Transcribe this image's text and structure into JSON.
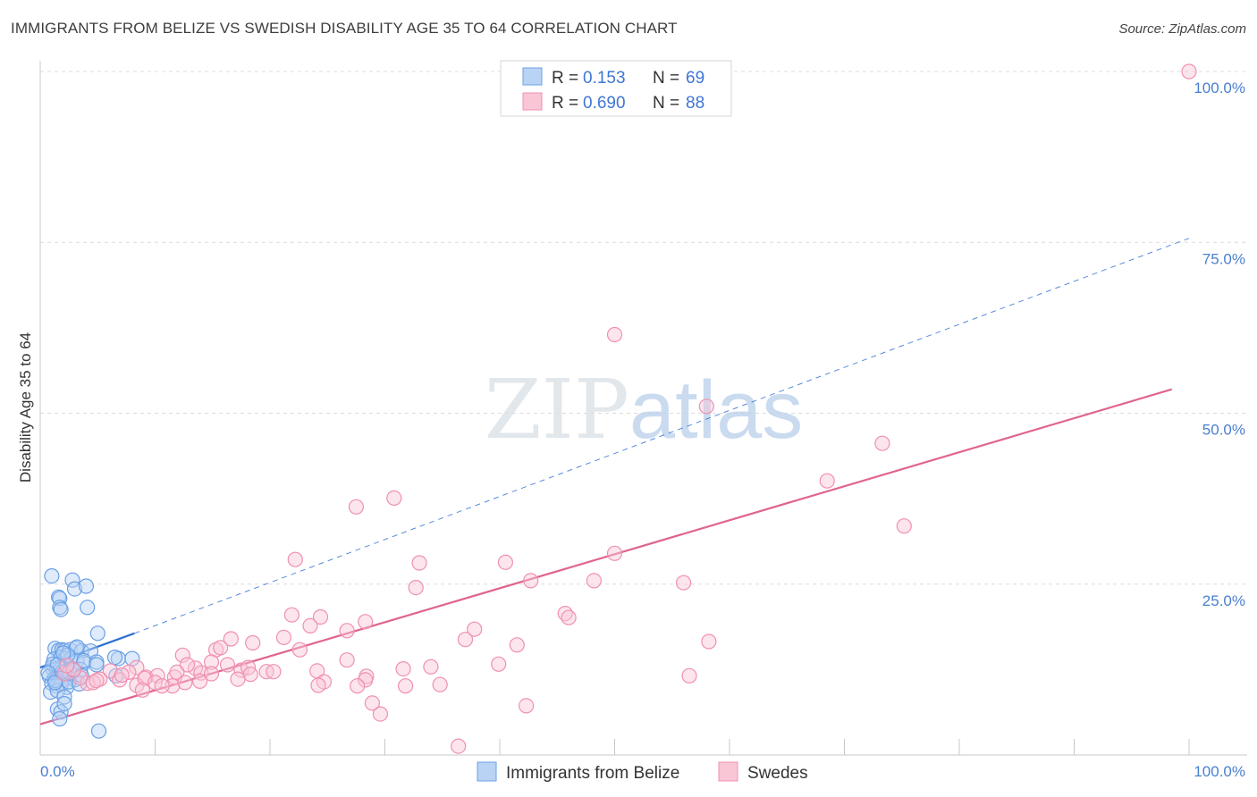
{
  "chart_data": {
    "type": "scatter",
    "title": "IMMIGRANTS FROM BELIZE VS SWEDISH DISABILITY AGE 35 TO 64 CORRELATION CHART",
    "source": "Source: ZipAtlas.com",
    "ylabel": "Disability Age 35 to 64",
    "xlim": [
      0,
      100
    ],
    "ylim": [
      0,
      100
    ],
    "x_tick_labels": {
      "left": "0.0%",
      "right": "100.0%"
    },
    "y_ticks": [
      {
        "value": 25,
        "label": "25.0%"
      },
      {
        "value": 50,
        "label": "50.0%"
      },
      {
        "value": 75,
        "label": "75.0%"
      },
      {
        "value": 100,
        "label": "100.0%"
      }
    ],
    "grid": true,
    "legend": {
      "position": "top-center",
      "entries": [
        {
          "r_label": "R =",
          "r": "0.153",
          "n_label": "N =",
          "n": "69"
        },
        {
          "r_label": "R =",
          "r": "0.690",
          "n_label": "N =",
          "n": "88"
        }
      ]
    },
    "watermark": "ZIPatlas",
    "series": [
      {
        "name": "Immigrants from Belize",
        "color": "#6aa0e6",
        "fill": "#b9d3f5",
        "line_color": "#2f6fd1",
        "trend": {
          "solid": [
            [
              0,
              12.8
            ],
            [
              8.2,
              17.8
            ]
          ],
          "dashed": [
            [
              8.2,
              17.8
            ],
            [
              100,
              75.6
            ]
          ]
        },
        "points": [
          [
            1.0,
            26.2
          ],
          [
            1.6,
            23.1
          ],
          [
            1.7,
            22.9
          ],
          [
            1.7,
            21.6
          ],
          [
            1.8,
            21.3
          ],
          [
            1.3,
            15.6
          ],
          [
            1.6,
            15.3
          ],
          [
            1.9,
            15.4
          ],
          [
            2.1,
            15.3
          ],
          [
            2.6,
            15.4
          ],
          [
            3.1,
            15.6
          ],
          [
            3.6,
            15.2
          ],
          [
            4.4,
            15.2
          ],
          [
            1.2,
            14.0
          ],
          [
            1.8,
            14.3
          ],
          [
            2.2,
            14.1
          ],
          [
            2.7,
            14.1
          ],
          [
            3.2,
            13.8
          ],
          [
            3.8,
            13.5
          ],
          [
            1.0,
            12.8
          ],
          [
            1.4,
            12.5
          ],
          [
            1.8,
            12.6
          ],
          [
            2.2,
            12.3
          ],
          [
            2.8,
            12.6
          ],
          [
            3.5,
            12.5
          ],
          [
            0.8,
            11.5
          ],
          [
            1.2,
            11.1
          ],
          [
            1.6,
            11.3
          ],
          [
            2.0,
            11.0
          ],
          [
            2.5,
            11.3
          ],
          [
            3.0,
            11.0
          ],
          [
            1.0,
            10.5
          ],
          [
            1.4,
            10.1
          ],
          [
            1.8,
            10.3
          ],
          [
            2.3,
            9.9
          ],
          [
            0.9,
            9.2
          ],
          [
            1.5,
            9.4
          ],
          [
            2.1,
            8.5
          ],
          [
            1.5,
            6.7
          ],
          [
            1.8,
            6.3
          ],
          [
            1.7,
            5.3
          ],
          [
            2.1,
            7.5
          ],
          [
            1.3,
            10.9
          ],
          [
            2.5,
            10.7
          ],
          [
            3.8,
            13.8
          ],
          [
            4.9,
            13.6
          ],
          [
            2.8,
            25.6
          ],
          [
            3.0,
            24.3
          ],
          [
            4.0,
            24.7
          ],
          [
            4.9,
            13.2
          ],
          [
            4.1,
            21.6
          ],
          [
            5.0,
            17.8
          ],
          [
            6.8,
            14.1
          ],
          [
            6.6,
            11.6
          ],
          [
            6.5,
            14.3
          ],
          [
            3.2,
            15.8
          ],
          [
            5.1,
            3.5
          ],
          [
            8.0,
            14.1
          ],
          [
            2.6,
            12.0
          ],
          [
            1.1,
            13.3
          ],
          [
            2.4,
            14.6
          ],
          [
            3.4,
            10.4
          ],
          [
            1.9,
            12.1
          ],
          [
            2.9,
            12.4
          ],
          [
            1.5,
            13.2
          ],
          [
            2.0,
            14.9
          ],
          [
            3.6,
            11.6
          ],
          [
            0.7,
            12.0
          ],
          [
            1.3,
            10.6
          ]
        ]
      },
      {
        "name": "Swedes",
        "color": "#f090b0",
        "fill": "#f9c6d6",
        "line_color": "#e0648e",
        "trend": {
          "solid": [
            [
              0,
              4.5
            ],
            [
              98.5,
              53.5
            ]
          ]
        },
        "points": [
          [
            100,
            100
          ],
          [
            50,
            61.5
          ],
          [
            58,
            51
          ],
          [
            73.3,
            45.6
          ],
          [
            68.5,
            40.1
          ],
          [
            75.2,
            33.5
          ],
          [
            27.5,
            36.3
          ],
          [
            30.8,
            37.6
          ],
          [
            22.2,
            28.6
          ],
          [
            33,
            28.1
          ],
          [
            40.5,
            28.2
          ],
          [
            50,
            29.5
          ],
          [
            42.7,
            25.5
          ],
          [
            56,
            25.2
          ],
          [
            48.2,
            25.5
          ],
          [
            32.7,
            24.5
          ],
          [
            21.9,
            20.5
          ],
          [
            28.3,
            19.5
          ],
          [
            45.7,
            20.7
          ],
          [
            24.4,
            20.2
          ],
          [
            46,
            20.1
          ],
          [
            37.8,
            18.4
          ],
          [
            23.5,
            18.9
          ],
          [
            26.7,
            18.2
          ],
          [
            16.6,
            17
          ],
          [
            21.2,
            17.2
          ],
          [
            18.5,
            16.4
          ],
          [
            37,
            16.9
          ],
          [
            41.5,
            16.1
          ],
          [
            58.2,
            16.6
          ],
          [
            15.3,
            15.4
          ],
          [
            15.7,
            15.7
          ],
          [
            22.6,
            15.4
          ],
          [
            12.4,
            14.6
          ],
          [
            14.9,
            13.6
          ],
          [
            13.5,
            12.7
          ],
          [
            12.8,
            13.2
          ],
          [
            16.3,
            13.2
          ],
          [
            8.4,
            12.8
          ],
          [
            6.1,
            12.3
          ],
          [
            7.7,
            12.1
          ],
          [
            9.2,
            11.4
          ],
          [
            10.2,
            11.6
          ],
          [
            11.7,
            11.4
          ],
          [
            11.9,
            12.1
          ],
          [
            14,
            12
          ],
          [
            14.9,
            11.9
          ],
          [
            17.5,
            12.4
          ],
          [
            18.1,
            12.8
          ],
          [
            18.3,
            11.8
          ],
          [
            19.7,
            12.2
          ],
          [
            20.3,
            12.2
          ],
          [
            24.1,
            12.3
          ],
          [
            26.7,
            13.9
          ],
          [
            28.4,
            11.5
          ],
          [
            31.6,
            12.6
          ],
          [
            34,
            12.9
          ],
          [
            39.9,
            13.3
          ],
          [
            56.5,
            11.6
          ],
          [
            5.2,
            11.1
          ],
          [
            6.9,
            11
          ],
          [
            7.1,
            11.7
          ],
          [
            4.1,
            10.5
          ],
          [
            3.5,
            11.3
          ],
          [
            2.1,
            11.9
          ],
          [
            2.9,
            12.5
          ],
          [
            2.3,
            13.1
          ],
          [
            4.6,
            10.6
          ],
          [
            4.9,
            10.9
          ],
          [
            8.4,
            10.2
          ],
          [
            9.1,
            11.2
          ],
          [
            10,
            10.6
          ],
          [
            11.5,
            10.1
          ],
          [
            12.6,
            10.6
          ],
          [
            13.9,
            10.8
          ],
          [
            17.2,
            11.1
          ],
          [
            24.7,
            10.7
          ],
          [
            28.3,
            11
          ],
          [
            8.9,
            9.5
          ],
          [
            10.6,
            10.1
          ],
          [
            24.2,
            10.2
          ],
          [
            27.6,
            10.1
          ],
          [
            34.8,
            10.3
          ],
          [
            31.8,
            10.1
          ],
          [
            28.9,
            7.6
          ],
          [
            29.6,
            6
          ],
          [
            42.3,
            7.2
          ],
          [
            36.4,
            1.3
          ]
        ]
      }
    ]
  }
}
